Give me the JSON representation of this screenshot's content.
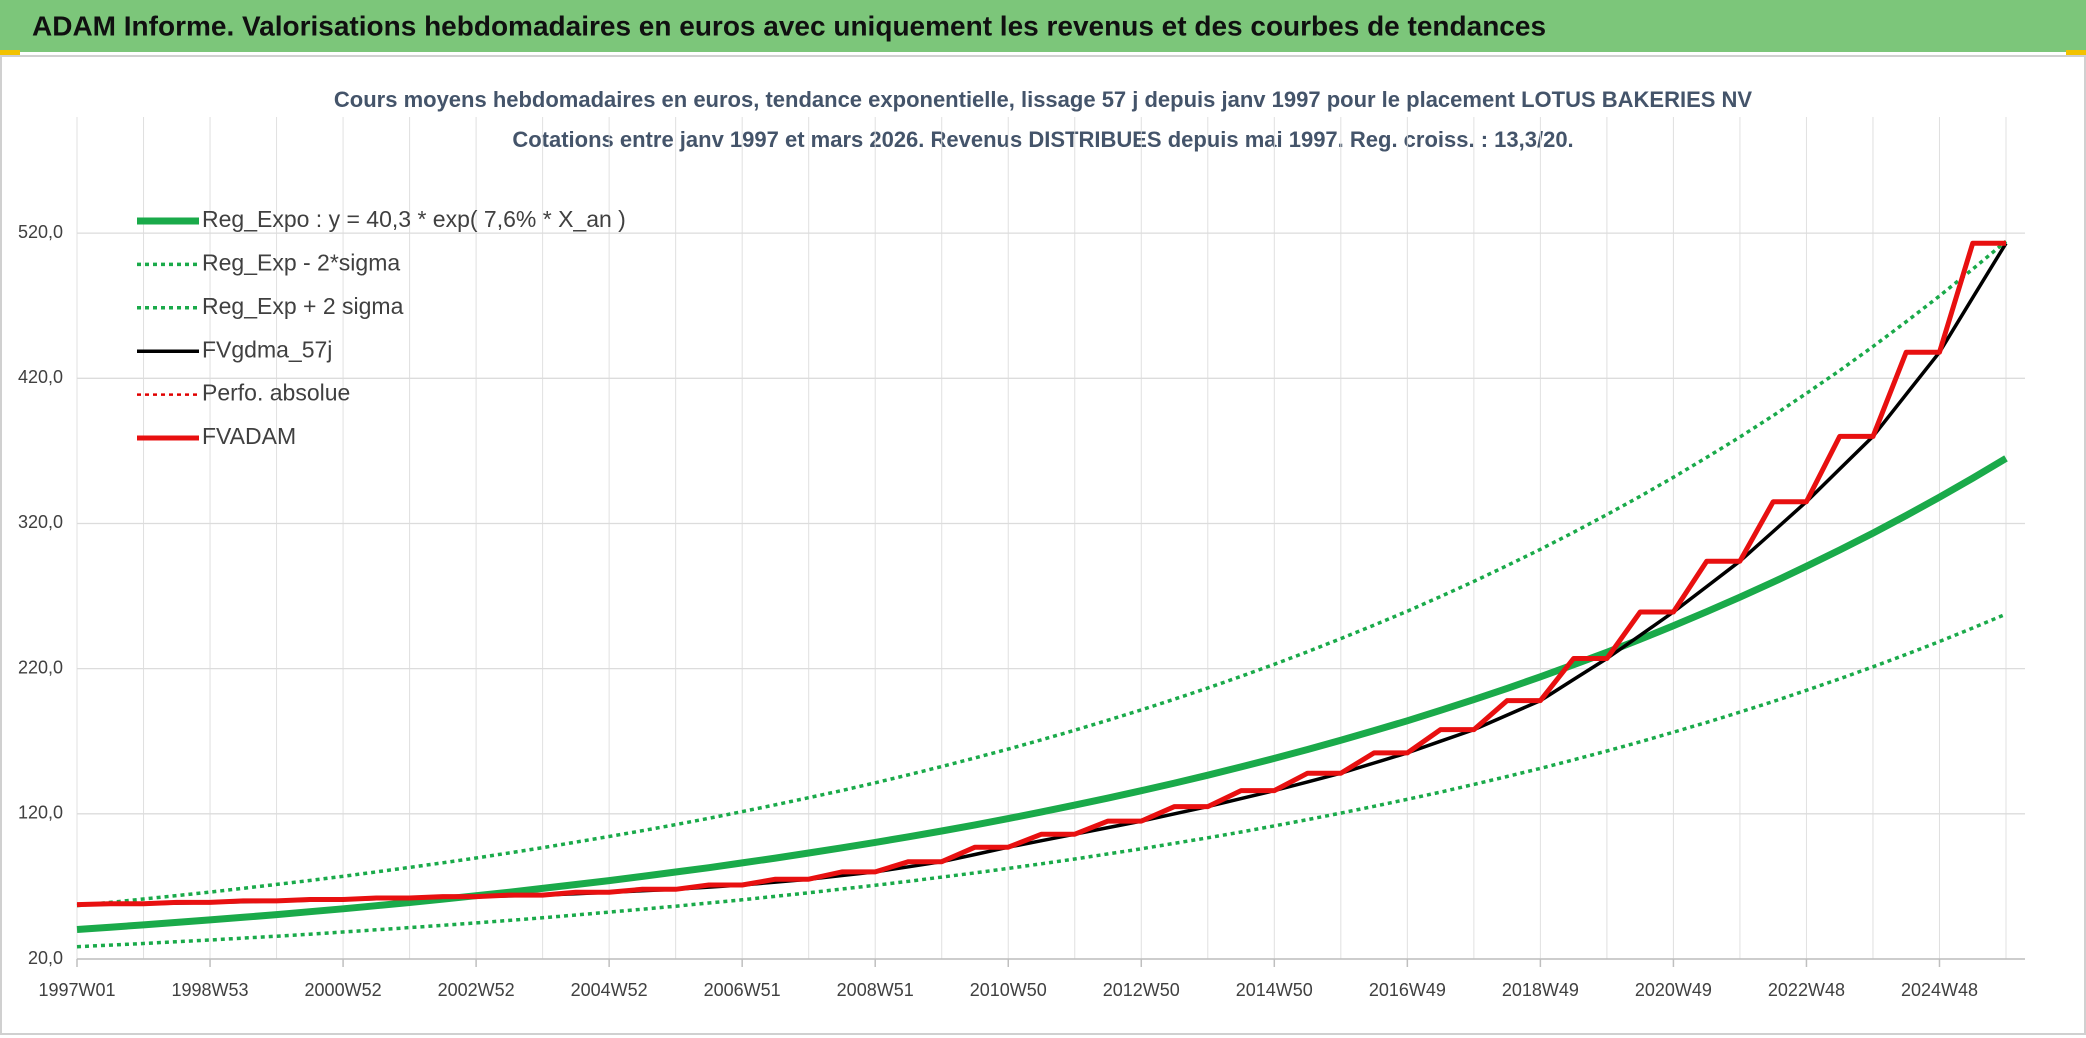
{
  "header": "ADAM Informe. Valorisations hebdomadaires en euros avec uniquement les revenus et des courbes de tendances",
  "chart_data": {
    "type": "line",
    "title": "Cours moyens hebdomadaires en euros, tendance exponentielle, lissage 57 j depuis janv 1997 pour le placement LOTUS BAKERIES NV",
    "subtitle": "Cotations entre janv 1997 et mars 2026. Revenus DISTRIBUES depuis mai 1997. Reg. croiss. : 13,3/20.",
    "categories": [
      "1997W01",
      null,
      null,
      null,
      "1998W53",
      null,
      null,
      null,
      "2000W52",
      null,
      null,
      null,
      "2002W52",
      null,
      null,
      null,
      "2004W52",
      null,
      null,
      null,
      "2006W51",
      null,
      null,
      null,
      "2008W51",
      null,
      null,
      null,
      "2010W50",
      null,
      null,
      null,
      "2012W50",
      null,
      null,
      null,
      "2014W50",
      null,
      null,
      null,
      "2016W49",
      null,
      null,
      null,
      "2018W49",
      null,
      null,
      null,
      "2020W49",
      null,
      null,
      null,
      "2022W48",
      null,
      null,
      null,
      "2024W48",
      null,
      null
    ],
    "series": [
      {
        "name": "Reg_Expo : y = 40,3 * exp( 7,6% *  X_an )",
        "color": "#1aaa4a",
        "width": 7,
        "dash": "solid",
        "values": [
          40.3,
          41.9,
          43.5,
          45.2,
          46.9,
          48.7,
          50.6,
          52.6,
          54.6,
          56.7,
          58.9,
          61.2,
          63.6,
          66.0,
          68.6,
          71.3,
          74.0,
          76.9,
          79.9,
          82.9,
          86.2,
          89.5,
          93.0,
          96.6,
          100.3,
          104.2,
          108.2,
          112.4,
          116.7,
          121.3,
          126.0,
          130.8,
          135.9,
          141.2,
          146.6,
          152.3,
          158.2,
          164.3,
          170.7,
          177.3,
          184.1,
          191.3,
          198.7,
          206.4,
          214.4,
          222.7,
          231.3,
          240.2,
          249.5,
          259.2,
          269.2,
          279.6,
          290.5,
          301.7,
          313.4,
          325.5,
          338.1,
          351.2,
          364.8
        ]
      },
      {
        "name": "Reg_Exp - 2*sigma",
        "color": "#1aaa4a",
        "width": 3.5,
        "dash": "dotted",
        "values": [
          28.5,
          29.6,
          30.7,
          31.9,
          33.1,
          34.4,
          35.7,
          37.1,
          38.6,
          40.1,
          41.6,
          43.2,
          44.9,
          46.6,
          48.4,
          50.3,
          52.3,
          54.3,
          56.4,
          58.6,
          60.8,
          63.2,
          65.6,
          68.2,
          70.8,
          73.5,
          76.4,
          79.3,
          82.4,
          85.6,
          88.9,
          92.4,
          95.9,
          99.7,
          103.5,
          107.5,
          111.7,
          116.0,
          120.5,
          125.2,
          130.0,
          135.0,
          140.3,
          145.7,
          151.3,
          157.2,
          163.3,
          169.6,
          176.2,
          183.0,
          190.1,
          197.4,
          205.1,
          213.0,
          221.3,
          229.8,
          238.7,
          248.0,
          257.6
        ]
      },
      {
        "name": "Reg_Exp + 2 sigma",
        "color": "#1aaa4a",
        "width": 3.5,
        "dash": "dotted",
        "values": [
          56.8,
          59.0,
          61.3,
          63.7,
          66.1,
          68.7,
          71.4,
          74.1,
          77.0,
          80.0,
          83.1,
          86.3,
          89.6,
          93.1,
          96.7,
          100.5,
          104.4,
          108.4,
          112.6,
          116.9,
          121.5,
          126.2,
          131.1,
          136.1,
          141.4,
          146.9,
          152.6,
          158.5,
          164.6,
          171.0,
          177.6,
          184.5,
          191.6,
          199.0,
          206.7,
          214.7,
          223.0,
          231.7,
          240.7,
          250.0,
          259.6,
          269.7,
          280.1,
          291.0,
          302.2,
          313.9,
          326.1,
          338.7,
          351.8,
          365.5,
          379.6,
          394.3,
          409.6,
          425.4,
          441.9,
          459.0,
          476.7,
          495.2,
          514.4
        ]
      },
      {
        "name": "FVgdma_57j",
        "color": "#000000",
        "width": 3.5,
        "dash": "solid",
        "values": [
          57.5,
          57.8,
          58,
          58.5,
          59,
          59.5,
          60,
          60.5,
          61,
          61.5,
          62,
          62.5,
          63,
          63.5,
          64,
          65,
          66,
          67,
          68,
          69.5,
          71,
          73,
          75,
          77.5,
          80,
          83.5,
          87,
          92,
          97,
          101.5,
          106,
          110.5,
          115,
          120,
          125,
          130.5,
          136,
          142,
          148,
          155,
          162,
          170,
          178,
          188,
          198,
          212.5,
          227,
          243,
          259,
          276.5,
          294,
          314.5,
          335,
          357.5,
          380,
          409,
          438,
          475.5,
          513
        ]
      },
      {
        "name": "Perfo. absolue",
        "color": "#e00000",
        "width": 2.5,
        "dash": "dotted",
        "values": [
          57.5,
          58,
          58,
          59,
          59,
          60,
          60,
          61,
          61,
          62,
          62,
          63,
          63,
          64,
          64,
          66,
          66,
          68,
          68,
          71,
          71,
          75,
          75,
          80,
          80,
          87,
          87,
          97,
          97,
          106,
          106,
          115,
          115,
          125,
          125,
          136,
          136,
          148,
          148,
          162,
          162,
          178,
          178,
          198,
          198,
          227,
          227,
          259,
          259,
          294,
          294,
          335,
          335,
          380,
          380,
          438,
          438,
          513,
          513
        ]
      },
      {
        "name": "FVADAM",
        "color": "#e81010",
        "width": 5,
        "dash": "solid",
        "values": [
          57.5,
          58,
          58,
          59,
          59,
          60,
          60,
          61,
          61,
          62,
          62,
          63,
          63,
          64,
          64,
          66,
          66,
          68,
          68,
          71,
          71,
          75,
          75,
          80,
          80,
          87,
          87,
          97,
          97,
          106,
          106,
          115,
          115,
          125,
          125,
          136,
          136,
          148,
          148,
          162,
          162,
          178,
          178,
          198,
          198,
          227,
          227,
          259,
          259,
          294,
          294,
          335,
          335,
          380,
          380,
          438,
          438,
          513,
          513
        ]
      }
    ],
    "ylim": [
      20,
      600
    ],
    "yticks": [
      {
        "value": 20,
        "label": "20,0"
      },
      {
        "value": 120,
        "label": "120,0"
      },
      {
        "value": 220,
        "label": "220,0"
      },
      {
        "value": 320,
        "label": "320,0"
      },
      {
        "value": 420,
        "label": "420,0"
      },
      {
        "value": 520,
        "label": "520,0"
      }
    ],
    "grid": true,
    "legend": "top-left"
  }
}
